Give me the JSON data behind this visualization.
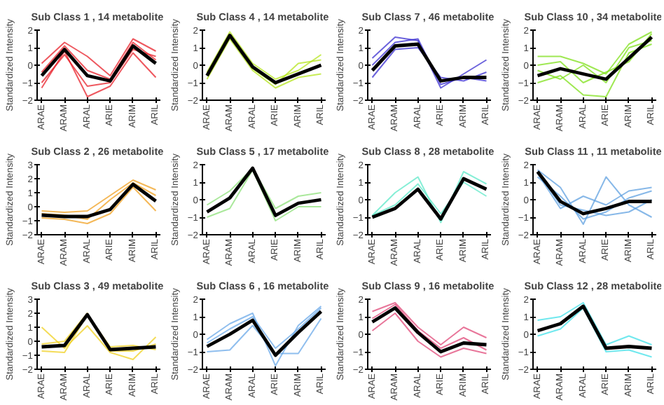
{
  "chart_data": [
    {
      "type": "line",
      "title": "Sub Class  1 , 14 metabolite",
      "ylabel": "Standardized Intensity",
      "categories": [
        "ARAE",
        "ARAM",
        "ARAL",
        "ARIE",
        "ARIM",
        "ARIL"
      ],
      "ylim": [
        -2,
        2
      ],
      "yticks": [
        -2,
        -1,
        0,
        1,
        2
      ],
      "series": [
        {
          "color": "#000000",
          "values": [
            -0.6,
            0.9,
            -0.6,
            -0.9,
            1.1,
            0.1
          ]
        },
        {
          "color": "#e8202a",
          "values": [
            0.1,
            1.3,
            0.5,
            -0.6,
            1.5,
            0.8
          ]
        },
        {
          "color": "#e8202a",
          "values": [
            -1.3,
            0.8,
            -1.8,
            -1.2,
            0.7,
            -0.7
          ]
        },
        {
          "color": "#e8202a",
          "values": [
            -0.4,
            1.1,
            -0.3,
            -0.8,
            1.3,
            0.3
          ]
        },
        {
          "color": "#e8202a",
          "values": [
            -1.0,
            0.6,
            -1.2,
            -1.0,
            0.9,
            0.5
          ]
        }
      ]
    },
    {
      "type": "line",
      "title": "Sub Class  4 , 14 metabolite",
      "ylabel": "Standardized Intensity",
      "categories": [
        "ARAE",
        "ARAM",
        "ARAL",
        "ARIE",
        "ARIM",
        "ARIL"
      ],
      "ylim": [
        -2,
        2
      ],
      "yticks": [
        -2,
        -1,
        0,
        1,
        2
      ],
      "series": [
        {
          "color": "#000000",
          "values": [
            -0.6,
            1.7,
            -0.1,
            -1.0,
            -0.5,
            0.0
          ]
        },
        {
          "color": "#b5e61d",
          "values": [
            -0.4,
            1.9,
            0.1,
            -0.8,
            -0.3,
            0.6
          ]
        },
        {
          "color": "#b5e61d",
          "values": [
            -0.8,
            1.5,
            -0.3,
            -1.3,
            -0.7,
            -0.5
          ]
        },
        {
          "color": "#b5e61d",
          "values": [
            -0.5,
            1.7,
            -0.2,
            -1.1,
            0.1,
            0.3
          ]
        }
      ]
    },
    {
      "type": "line",
      "title": "Sub Class  7 , 46 metabolite",
      "ylabel": "Standardized Intensity",
      "categories": [
        "ARAE",
        "ARAM",
        "ARAL",
        "ARIE",
        "ARIM",
        "ARIL"
      ],
      "ylim": [
        -2,
        2
      ],
      "yticks": [
        -2,
        -1,
        0,
        1,
        2
      ],
      "series": [
        {
          "color": "#000000",
          "values": [
            -0.3,
            1.1,
            1.2,
            -0.9,
            -0.7,
            -0.7
          ]
        },
        {
          "color": "#3b2fd0",
          "values": [
            0.4,
            1.6,
            1.4,
            -1.3,
            -0.5,
            0.3
          ]
        },
        {
          "color": "#3b2fd0",
          "values": [
            -0.7,
            0.9,
            1.0,
            -0.7,
            -0.9,
            -0.4
          ]
        },
        {
          "color": "#3b2fd0",
          "values": [
            0.0,
            1.3,
            1.5,
            -1.1,
            -0.7,
            -0.9
          ]
        }
      ]
    },
    {
      "type": "line",
      "title": "Sub Class  10 , 34 metabolite",
      "ylabel": "Standardized Intensity",
      "categories": [
        "ARAE",
        "ARAM",
        "ARAL",
        "ARIE",
        "ARIM",
        "ARIL"
      ],
      "ylim": [
        -2,
        2
      ],
      "yticks": [
        -2,
        -1,
        0,
        1,
        2
      ],
      "series": [
        {
          "color": "#000000",
          "values": [
            -0.6,
            -0.2,
            -0.5,
            -0.8,
            0.4,
            1.6
          ]
        },
        {
          "color": "#7fe01a",
          "values": [
            0.5,
            0.5,
            0.1,
            -0.5,
            1.2,
            1.9
          ]
        },
        {
          "color": "#7fe01a",
          "values": [
            -1.0,
            -0.6,
            -1.7,
            -1.8,
            0.7,
            1.2
          ]
        },
        {
          "color": "#7fe01a",
          "values": [
            0.0,
            0.2,
            -1.0,
            -0.4,
            0.2,
            1.8
          ]
        },
        {
          "color": "#7fe01a",
          "values": [
            -0.3,
            -0.8,
            0.0,
            -1.0,
            1.0,
            1.4
          ]
        }
      ]
    },
    {
      "type": "line",
      "title": "Sub Class  2 , 26 metabolite",
      "ylabel": "Standardized Intensity",
      "categories": [
        "ARAE",
        "ARAM",
        "ARAL",
        "ARIE",
        "ARIM",
        "ARIL"
      ],
      "ylim": [
        -2,
        3
      ],
      "yticks": [
        -2,
        -1,
        0,
        1,
        2,
        3
      ],
      "series": [
        {
          "color": "#000000",
          "values": [
            -0.6,
            -0.7,
            -0.7,
            -0.2,
            1.6,
            0.4
          ]
        },
        {
          "color": "#f0a020",
          "values": [
            -0.3,
            -0.4,
            -0.3,
            0.8,
            1.9,
            1.2
          ]
        },
        {
          "color": "#f0a020",
          "values": [
            -0.8,
            -0.9,
            -1.2,
            -0.5,
            1.4,
            -0.3
          ]
        },
        {
          "color": "#f0a020",
          "values": [
            -0.5,
            -0.6,
            -0.9,
            0.5,
            1.7,
            0.8
          ]
        }
      ]
    },
    {
      "type": "line",
      "title": "Sub Class  5 , 17 metabolite",
      "ylabel": "Standardized Intensity",
      "categories": [
        "ARAE",
        "ARAM",
        "ARAL",
        "ARIE",
        "ARIM",
        "ARIL"
      ],
      "ylim": [
        -2,
        2
      ],
      "yticks": [
        -2,
        -1,
        0,
        1,
        2
      ],
      "series": [
        {
          "color": "#000000",
          "values": [
            -0.7,
            0.1,
            1.8,
            -0.9,
            -0.2,
            0.0
          ]
        },
        {
          "color": "#8ee07a",
          "values": [
            -0.3,
            0.5,
            1.8,
            -0.5,
            0.2,
            0.4
          ]
        },
        {
          "color": "#8ee07a",
          "values": [
            -1.0,
            -0.5,
            1.7,
            -1.2,
            -0.4,
            -0.4
          ]
        }
      ]
    },
    {
      "type": "line",
      "title": "Sub Class  8 , 28 metabolite",
      "ylabel": "Standardized Intensity",
      "categories": [
        "ARAE",
        "ARAM",
        "ARAL",
        "ARIE",
        "ARIM",
        "ARIL"
      ],
      "ylim": [
        -2,
        2
      ],
      "yticks": [
        -2,
        -1,
        0,
        1,
        2
      ],
      "series": [
        {
          "color": "#000000",
          "values": [
            -1.0,
            -0.5,
            0.6,
            -1.1,
            1.2,
            0.6
          ]
        },
        {
          "color": "#5ee8c8",
          "values": [
            -0.9,
            0.4,
            1.3,
            -1.3,
            1.6,
            0.9
          ]
        },
        {
          "color": "#5ee8c8",
          "values": [
            -0.9,
            -0.3,
            0.9,
            -0.8,
            1.0,
            0.2
          ]
        }
      ]
    },
    {
      "type": "line",
      "title": "Sub Class  11 , 11 metabolite",
      "ylabel": "Standardized Intensity",
      "categories": [
        "ARAE",
        "ARAM",
        "ARAL",
        "ARIE",
        "ARIM",
        "ARIL"
      ],
      "ylim": [
        -2,
        2
      ],
      "yticks": [
        -2,
        -1,
        0,
        1,
        2
      ],
      "series": [
        {
          "color": "#000000",
          "values": [
            1.6,
            -0.1,
            -0.8,
            -0.5,
            -0.1,
            -0.1
          ]
        },
        {
          "color": "#5fa0e0",
          "values": [
            1.7,
            0.7,
            -1.4,
            1.3,
            -0.3,
            -1.0
          ]
        },
        {
          "color": "#5fa0e0",
          "values": [
            1.5,
            -0.5,
            0.2,
            -0.3,
            0.5,
            0.7
          ]
        },
        {
          "color": "#5fa0e0",
          "values": [
            1.3,
            0.2,
            -1.1,
            -0.7,
            0.1,
            0.5
          ]
        },
        {
          "color": "#5fa0e0",
          "values": [
            1.6,
            -0.3,
            -0.6,
            -0.9,
            -0.7,
            0.0
          ]
        }
      ]
    },
    {
      "type": "line",
      "title": "Sub Class  3 , 49 metabolite",
      "ylabel": "Standardized Intensity",
      "categories": [
        "ARAE",
        "ARAM",
        "ARAL",
        "ARIE",
        "ARIM",
        "ARIL"
      ],
      "ylim": [
        -2,
        3
      ],
      "yticks": [
        -2,
        -1,
        0,
        1,
        2,
        3
      ],
      "series": [
        {
          "color": "#000000",
          "values": [
            -0.4,
            -0.3,
            1.9,
            -0.6,
            -0.5,
            -0.4
          ]
        },
        {
          "color": "#f0d020",
          "values": [
            1.0,
            -0.5,
            1.1,
            -0.8,
            -1.3,
            0.3
          ]
        },
        {
          "color": "#f0d020",
          "values": [
            -0.7,
            -0.8,
            1.9,
            -0.4,
            -0.3,
            -0.6
          ]
        },
        {
          "color": "#f0d020",
          "values": [
            -0.2,
            0.0,
            2.0,
            -0.7,
            -0.7,
            -0.2
          ]
        }
      ]
    },
    {
      "type": "line",
      "title": "Sub Class  6 , 16 metabolite",
      "ylabel": "Standardized Intensity",
      "categories": [
        "ARAE",
        "ARAM",
        "ARAL",
        "ARIE",
        "ARIM",
        "ARIL"
      ],
      "ylim": [
        -2,
        2
      ],
      "yticks": [
        -2,
        -1,
        0,
        1,
        2
      ],
      "series": [
        {
          "color": "#000000",
          "values": [
            -0.7,
            0.0,
            0.8,
            -1.2,
            0.1,
            1.3
          ]
        },
        {
          "color": "#6aa8e8",
          "values": [
            -0.3,
            0.6,
            1.2,
            -1.8,
            0.5,
            1.6
          ]
        },
        {
          "color": "#6aa8e8",
          "values": [
            -1.0,
            -0.9,
            0.5,
            -1.1,
            -1.1,
            0.9
          ]
        },
        {
          "color": "#6aa8e8",
          "values": [
            -0.5,
            0.3,
            1.0,
            -0.8,
            0.3,
            1.5
          ]
        }
      ]
    },
    {
      "type": "line",
      "title": "Sub Class  9 , 16 metabolite",
      "ylabel": "Standardized Intensity",
      "categories": [
        "ARAE",
        "ARAM",
        "ARAL",
        "ARIE",
        "ARIM",
        "ARIL"
      ],
      "ylim": [
        -2,
        2
      ],
      "yticks": [
        -2,
        -1,
        0,
        1,
        2
      ],
      "series": [
        {
          "color": "#000000",
          "values": [
            0.7,
            1.5,
            0.1,
            -1.0,
            -0.5,
            -0.6
          ]
        },
        {
          "color": "#e04878",
          "values": [
            1.3,
            1.8,
            0.4,
            -0.6,
            0.4,
            -0.2
          ]
        },
        {
          "color": "#e04878",
          "values": [
            0.2,
            1.2,
            -0.4,
            -1.3,
            -0.8,
            -1.1
          ]
        },
        {
          "color": "#e04878",
          "values": [
            0.9,
            1.7,
            0.2,
            -0.8,
            -0.2,
            -0.9
          ]
        }
      ]
    },
    {
      "type": "line",
      "title": "Sub Class  12 , 28 metabolite",
      "ylabel": "Standardized Intensity",
      "categories": [
        "ARAE",
        "ARAM",
        "ARAL",
        "ARIE",
        "ARIM",
        "ARIL"
      ],
      "ylim": [
        -2,
        2
      ],
      "yticks": [
        -2,
        -1,
        0,
        1,
        2
      ],
      "series": [
        {
          "color": "#000000",
          "values": [
            0.2,
            0.6,
            1.6,
            -0.8,
            -0.7,
            -0.8
          ]
        },
        {
          "color": "#40e0e8",
          "values": [
            0.8,
            1.0,
            1.8,
            -0.6,
            -0.1,
            -0.6
          ]
        },
        {
          "color": "#40e0e8",
          "values": [
            -0.1,
            0.3,
            1.5,
            -1.0,
            -0.9,
            -1.3
          ]
        }
      ]
    }
  ]
}
